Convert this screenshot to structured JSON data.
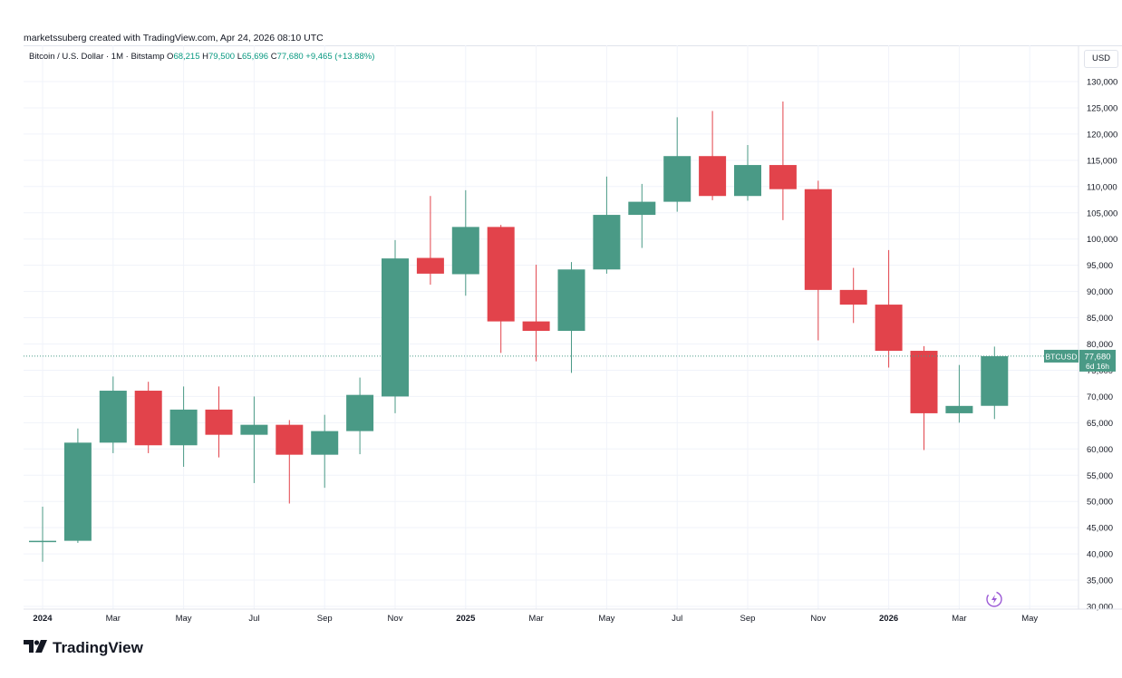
{
  "header": {
    "credit": "marketssuberg created with TradingView.com, Apr 24, 2026 08:10 UTC"
  },
  "legend": {
    "symbol": "Bitcoin / U.S. Dollar · 1M · Bitstamp",
    "o_label": "O",
    "o_value": "68,215",
    "h_label": "H",
    "h_value": "79,500",
    "l_label": "L",
    "l_value": "65,696",
    "c_label": "C",
    "c_value": "77,680",
    "change": "+9,465 (+13.88%)"
  },
  "currency": "USD",
  "price_tag": {
    "symbol": "BTCUSD",
    "price": "77,680",
    "countdown": "6d 16h"
  },
  "brand": {
    "name": "TradingView"
  },
  "colors": {
    "up": "#4a9a86",
    "down": "#e2434b",
    "grid": "#f0f3fa",
    "axis_text": "#131722"
  },
  "chart_data": {
    "type": "candlestick",
    "title": "",
    "ylim": [
      30000,
      130000
    ],
    "y_ticks": [
      30000,
      35000,
      40000,
      45000,
      50000,
      55000,
      60000,
      65000,
      70000,
      75000,
      80000,
      85000,
      90000,
      95000,
      100000,
      105000,
      110000,
      115000,
      120000,
      125000,
      130000
    ],
    "y_tick_labels": [
      "30,000",
      "35,000",
      "40,000",
      "45,000",
      "50,000",
      "55,000",
      "60,000",
      "65,000",
      "70,000",
      "75,000",
      "80,000",
      "85,000",
      "90,000",
      "95,000",
      "100,000",
      "105,000",
      "110,000",
      "115,000",
      "120,000",
      "125,000",
      "130,000"
    ],
    "x_labels": [
      {
        "month_index": 0,
        "label": "2024",
        "bold": true
      },
      {
        "month_index": 2,
        "label": "Mar"
      },
      {
        "month_index": 4,
        "label": "May"
      },
      {
        "month_index": 6,
        "label": "Jul"
      },
      {
        "month_index": 8,
        "label": "Sep"
      },
      {
        "month_index": 10,
        "label": "Nov"
      },
      {
        "month_index": 12,
        "label": "2025",
        "bold": true
      },
      {
        "month_index": 14,
        "label": "Mar"
      },
      {
        "month_index": 16,
        "label": "May"
      },
      {
        "month_index": 18,
        "label": "Jul"
      },
      {
        "month_index": 20,
        "label": "Sep"
      },
      {
        "month_index": 22,
        "label": "Nov"
      },
      {
        "month_index": 24,
        "label": "2026",
        "bold": true
      },
      {
        "month_index": 26,
        "label": "Mar"
      },
      {
        "month_index": 28,
        "label": "May"
      }
    ],
    "last_price": 77680,
    "candles": [
      {
        "month": "2024-01",
        "open": 42300,
        "high": 49000,
        "low": 38500,
        "close": 42500
      },
      {
        "month": "2024-02",
        "open": 42500,
        "high": 63900,
        "low": 42100,
        "close": 61200
      },
      {
        "month": "2024-03",
        "open": 61200,
        "high": 73800,
        "low": 59200,
        "close": 71100
      },
      {
        "month": "2024-04",
        "open": 71100,
        "high": 72800,
        "low": 59200,
        "close": 60700
      },
      {
        "month": "2024-05",
        "open": 60700,
        "high": 71900,
        "low": 56600,
        "close": 67500
      },
      {
        "month": "2024-06",
        "open": 67500,
        "high": 71900,
        "low": 58400,
        "close": 62700
      },
      {
        "month": "2024-07",
        "open": 62700,
        "high": 70000,
        "low": 53500,
        "close": 64600
      },
      {
        "month": "2024-08",
        "open": 64600,
        "high": 65500,
        "low": 49600,
        "close": 58900
      },
      {
        "month": "2024-09",
        "open": 58900,
        "high": 66500,
        "low": 52600,
        "close": 63400
      },
      {
        "month": "2024-10",
        "open": 63400,
        "high": 73600,
        "low": 59000,
        "close": 70300
      },
      {
        "month": "2024-11",
        "open": 70000,
        "high": 99800,
        "low": 66800,
        "close": 96300
      },
      {
        "month": "2024-12",
        "open": 96400,
        "high": 108200,
        "low": 91300,
        "close": 93400
      },
      {
        "month": "2025-01",
        "open": 93300,
        "high": 109300,
        "low": 89200,
        "close": 102300
      },
      {
        "month": "2025-02",
        "open": 102300,
        "high": 102700,
        "low": 78300,
        "close": 84300
      },
      {
        "month": "2025-03",
        "open": 84300,
        "high": 95100,
        "low": 76700,
        "close": 82500
      },
      {
        "month": "2025-04",
        "open": 82500,
        "high": 95600,
        "low": 74500,
        "close": 94200
      },
      {
        "month": "2025-05",
        "open": 94200,
        "high": 111900,
        "low": 93400,
        "close": 104600
      },
      {
        "month": "2025-06",
        "open": 104600,
        "high": 110500,
        "low": 98300,
        "close": 107100
      },
      {
        "month": "2025-07",
        "open": 107100,
        "high": 123200,
        "low": 105200,
        "close": 115800
      },
      {
        "month": "2025-08",
        "open": 115800,
        "high": 124400,
        "low": 107400,
        "close": 108200
      },
      {
        "month": "2025-09",
        "open": 108200,
        "high": 117900,
        "low": 107300,
        "close": 114100
      },
      {
        "month": "2025-10",
        "open": 114100,
        "high": 126200,
        "low": 103600,
        "close": 109500
      },
      {
        "month": "2025-11",
        "open": 109500,
        "high": 111100,
        "low": 80700,
        "close": 90300
      },
      {
        "month": "2025-12",
        "open": 90300,
        "high": 94500,
        "low": 84000,
        "close": 87500
      },
      {
        "month": "2026-01",
        "open": 87500,
        "high": 97900,
        "low": 75500,
        "close": 78700
      },
      {
        "month": "2026-02",
        "open": 78700,
        "high": 79600,
        "low": 59800,
        "close": 66800
      },
      {
        "month": "2026-03",
        "open": 66800,
        "high": 76000,
        "low": 65000,
        "close": 68200
      },
      {
        "month": "2026-04",
        "open": 68215,
        "high": 79500,
        "low": 65696,
        "close": 77680
      }
    ]
  }
}
